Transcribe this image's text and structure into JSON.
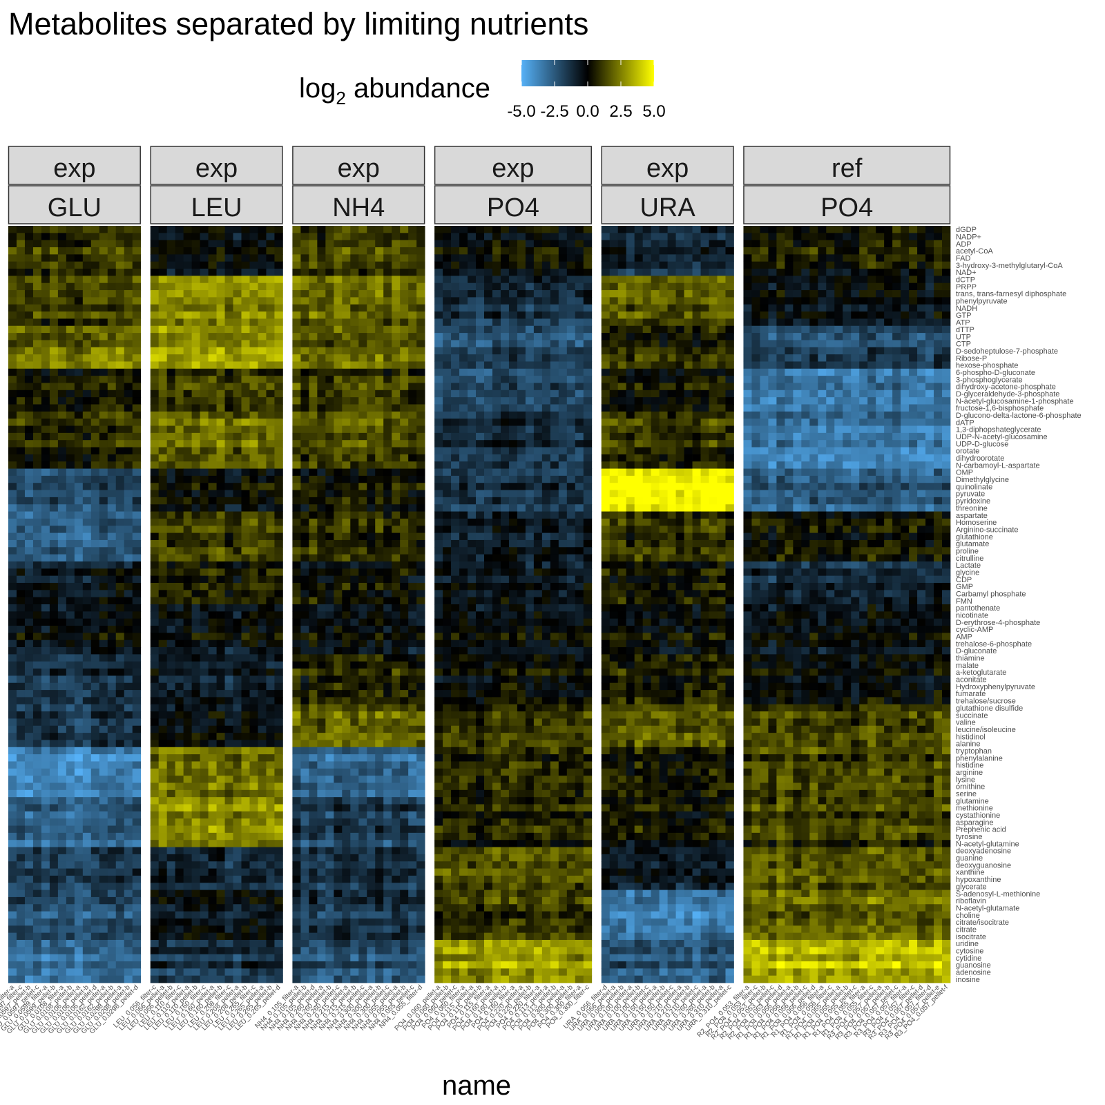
{
  "chart_data": {
    "type": "heatmap",
    "title": "Metabolites separated by limiting nutrients",
    "xlabel": "name",
    "legend": {
      "title_main": "log",
      "title_sub": "2",
      "title_rest": " abundance",
      "placement": "top",
      "range": [
        -5,
        5
      ],
      "ticks": [
        "-5.0",
        "-2.5",
        "0.0",
        "2.5",
        "5.0"
      ],
      "low_color": "#56B1F7",
      "mid_color": "#000000",
      "high_color": "#FFFF00"
    },
    "panels": [
      {
        "strip_top": "exp",
        "strip_bottom": "GLU",
        "n_cols": 16,
        "col_labels": [
          "GLU_0.0597_filter-a",
          "GLU_0.0597_filter-c",
          "GLU_0.0597_pellet-b",
          "GLU_0.0597_pellet-c",
          "GLU_0.0599_filter-a",
          "GLU_0.0599_pellet-b",
          "GLU_0.0108_filter-a",
          "GLU_0.0108_pellet-b",
          "GLU_0.0106_pellet-a",
          "GLU_0.0106_pellet-b",
          "GLU_0.0106_pellet-d",
          "GLU_0.0162_pellet-a",
          "GLU_0.0162_pellet-b",
          "GLU_0.0298_pellet-a",
          "GLU_0.0298_pellet-b",
          "GLU_0.0298_pellet-d"
        ]
      },
      {
        "strip_top": "exp",
        "strip_bottom": "LEU",
        "n_cols": 16,
        "col_labels": [
          "LEU_0.056_filter-c",
          "LEU_0.056_pellet-a",
          "LEU_0.056_pellet-b",
          "LEU_0.110_filter-c",
          "LEU_0.110_pellet-a",
          "LEU_0.110_pellet-b",
          "LEU_0.160_filter-c",
          "LEU_0.160_pellet-a",
          "LEU_0.160_pellet-b",
          "LEU_0.208_filter-c",
          "LEU_0.208_pellet-a",
          "LEU_0.208_pellet-b",
          "LEU_0.265_filter-c",
          "LEU_0.265_pellet-a",
          "LEU_0.265_pellet-b",
          "LEU_0.265_pellet-d"
        ]
      },
      {
        "strip_top": "exp",
        "strip_bottom": "NH4",
        "n_cols": 16,
        "col_labels": [
          "NH4_0.105_filter-a",
          "NH4_0.105_pellet-b",
          "NH4_0.105_pellet-d",
          "NH4_0.260_pellet-a",
          "NH4_0.260_pellet-b",
          "NH4_0.260_pellet-c",
          "NH4_0.215_pellet-a",
          "NH4_0.215_pellet-b",
          "NH4_0.215_pellet-c",
          "NH4_0.300_pellet-a",
          "NH4_0.300_pellet-b",
          "NH4_0.300_pellet-c",
          "NH4_0.055_pellet-a",
          "NH4_0.055_pellet-b",
          "NH4_0.055_pellet-c",
          "NH4_0.055_filter-d"
        ]
      },
      {
        "strip_top": "exp",
        "strip_bottom": "PO4",
        "n_cols": 19,
        "col_labels": [
          "PO4_0.060_pellet-a",
          "PO4_0.060_pellet-b",
          "PO4_0.060_pellet-c",
          "PO4_0.060_filter-a",
          "PO4_0.115_pellet-a",
          "PO4_0.115_pellet-b",
          "PO4_0.115_filter-a",
          "PO4_0.160_pellet-a",
          "PO4_0.160_pellet-b",
          "PO4_0.160_filter-a",
          "PO4_0.220_pellet-a",
          "PO4_0.220_pellet-b",
          "PO4_0.220_filter-a",
          "PO4_0.113_pellet-a",
          "PO4_0.113_pellet-b",
          "PO4_0.300_pellet-a",
          "PO4_0.300_pellet-b",
          "PO4_0.300_filter-a",
          "PO4_0.300_filter-c"
        ]
      },
      {
        "strip_top": "exp",
        "strip_bottom": "URA",
        "n_cols": 16,
        "col_labels": [
          "URA_0.056_filter-d",
          "URA_0.056_pellet-a",
          "URA_0.056_pellet-b",
          "URA_0.100_pellet-a",
          "URA_0.100_pellet-b",
          "URA_0.100_pellet-c",
          "URA_0.150_pellet-a",
          "URA_0.150_pellet-b",
          "URA_0.150_pellet-c",
          "URA_0.210_pellet-a",
          "URA_0.210_pellet-b",
          "URA_0.210_pellet-c",
          "URA_0.260_pellet-a",
          "URA_0.260_pellet-b",
          "URA_0.310_pellet-a",
          "URA_0.310_pellet-c"
        ]
      },
      {
        "strip_top": "ref",
        "strip_bottom": "PO4",
        "n_cols": 25,
        "col_labels": [
          "R2_PO4_0.053_filter-a",
          "R2_PO4_0.053_filter-c",
          "R2_PO4_0.053_pellet-b",
          "R2_PO4_0.053_pellet-c",
          "R2_PO4_0.053_pellet-d",
          "R1_PO4_0.056_pellet-a",
          "R1_PO4_0.056_pellet-b",
          "R1_PO4_0.056_pellet-c",
          "R1_PO4_0.056_pellet-d",
          "R1_PO4_0.056_filter-a",
          "R1_PO4_0.056_filter-c",
          "R1_PO4_0.055_pellet-a",
          "R1_PO4_0.055_pellet-b",
          "R1_PO4_0.055_pellet-c",
          "R1_PO4_0.055_filter-a",
          "R1_PO4_0.055_filter-c",
          "R3_PO4_0.057_pellet-a",
          "R3_PO4_0.057_pellet-b",
          "R3_PO4_0.057_pellet-c",
          "R3_PO4_0.057_filter-a",
          "R3_PO4_0.057_filter-c",
          "R3_PO4_0.057_pellet-d",
          "R3_PO4_0.057_filter-d",
          "R3_PO4_0.057_pellet-e",
          "R3_PO4_0.057_pellet-f"
        ]
      }
    ],
    "row_labels": [
      "dGDP",
      "NADP+",
      "ADP",
      "acetyl-CoA",
      "FAD",
      "3-hydroxy-3-methylglutaryl-CoA",
      "NAD+",
      "dCTP",
      "PRPP",
      "trans, trans-farnesyl diphosphate",
      "phenylpyruvate",
      "NADH",
      "GTP",
      "ATP",
      "dTTP",
      "UTP",
      "CTP",
      "D-sedoheptulose-7-phosphate",
      "Ribose-P",
      "hexose-phosphate",
      "6-phospho-D-gluconate",
      "3-phosphoglycerate",
      "dihydroxy-acetone-phosphate",
      "D-glyceraldehyde-3-phosphate",
      "N-acetyl-glucosamine-1-phosphate",
      "fructose-1,6-bisphosphate",
      "D-glucono-delta-lactone-6-phosphate",
      "dATP",
      "1,3-diphopshateglycerate",
      "UDP-N-acetyl-glucosamine",
      "UDP-D-glucose",
      "orotate",
      "dihydroorotate",
      "N-carbamoyl-L-aspartate",
      "OMP",
      "Dimethylglycine",
      "quinolinate",
      "pyruvate",
      "pyridoxine",
      "threonine",
      "aspartate",
      "Homoserine",
      "Arginino-succinate",
      "glutathione",
      "glutamate",
      "proline",
      "citrulline",
      "Lactate",
      "glycine",
      "CDP",
      "GMP",
      "Carbamyl phosphate",
      "FMN",
      "pantothenate",
      "nicotinate",
      "D-erythrose-4-phosphate",
      "cyclic-AMP",
      "AMP",
      "trehalose-6-phosphate",
      "D-gluconate",
      "thiamine",
      "malate",
      "a-ketoglutarate",
      "aconitate",
      "Hydroxyphenylpyruvate",
      "fumarate",
      "trehalose/sucrose",
      "glutathione disulfide",
      "succinate",
      "valine",
      "leucine/isoleucine",
      "histidinol",
      "alanine",
      "tryptophan",
      "phenylalanine",
      "histidine",
      "arginine",
      "lysine",
      "ornithine",
      "serine",
      "glutamine",
      "methionine",
      "cystathionine",
      "asparagine",
      "Prephenic acid",
      "tyrosine",
      "N-acetyl-glutamine",
      "deoxyadenosine",
      "guanine",
      "deoxyguanosine",
      "xanthine",
      "hypoxanthine",
      "glycerate",
      "S-adenosyl-L-methionine",
      "riboflavin",
      "N-acetyl-glutamate",
      "choline",
      "citrate/isocitrate",
      "citrate",
      "isocitrate",
      "uridine",
      "cytosine",
      "cytidine",
      "guanosine",
      "adenosine",
      "inosine"
    ],
    "band_means": [
      [
        0.8,
        -0.3,
        1.0,
        -0.2,
        -1.2,
        0.3
      ],
      [
        1.0,
        2.5,
        1.8,
        -1.5,
        1.5,
        -0.5
      ],
      [
        2.0,
        2.8,
        1.8,
        -2.2,
        0.6,
        -2.0
      ],
      [
        0.5,
        1.2,
        1.2,
        -2.0,
        0.3,
        -3.2
      ],
      [
        0.6,
        2.0,
        1.4,
        -1.4,
        1.0,
        -3.5
      ],
      [
        -2.2,
        -0.2,
        0.2,
        -1.6,
        5.0,
        -2.6
      ],
      [
        -2.8,
        1.0,
        0.6,
        -1.0,
        0.8,
        0.2
      ],
      [
        -0.6,
        0.6,
        0.2,
        -0.5,
        0.4,
        -1.0
      ],
      [
        -0.3,
        -0.3,
        -0.2,
        -0.2,
        0.0,
        -0.2
      ],
      [
        -1.2,
        -0.5,
        0.8,
        0.2,
        0.8,
        0.2
      ],
      [
        -1.6,
        -0.4,
        1.8,
        1.0,
        1.6,
        1.2
      ],
      [
        -3.8,
        2.2,
        -2.8,
        0.8,
        0.5,
        1.4
      ],
      [
        -2.8,
        2.6,
        -1.8,
        0.6,
        0.2,
        1.2
      ],
      [
        -1.8,
        -1.2,
        -1.4,
        1.4,
        -0.8,
        1.6
      ],
      [
        -2.4,
        -0.6,
        -1.6,
        0.8,
        -3.6,
        1.8
      ],
      [
        -3.0,
        -1.4,
        -2.2,
        3.0,
        -2.4,
        3.6
      ]
    ]
  }
}
